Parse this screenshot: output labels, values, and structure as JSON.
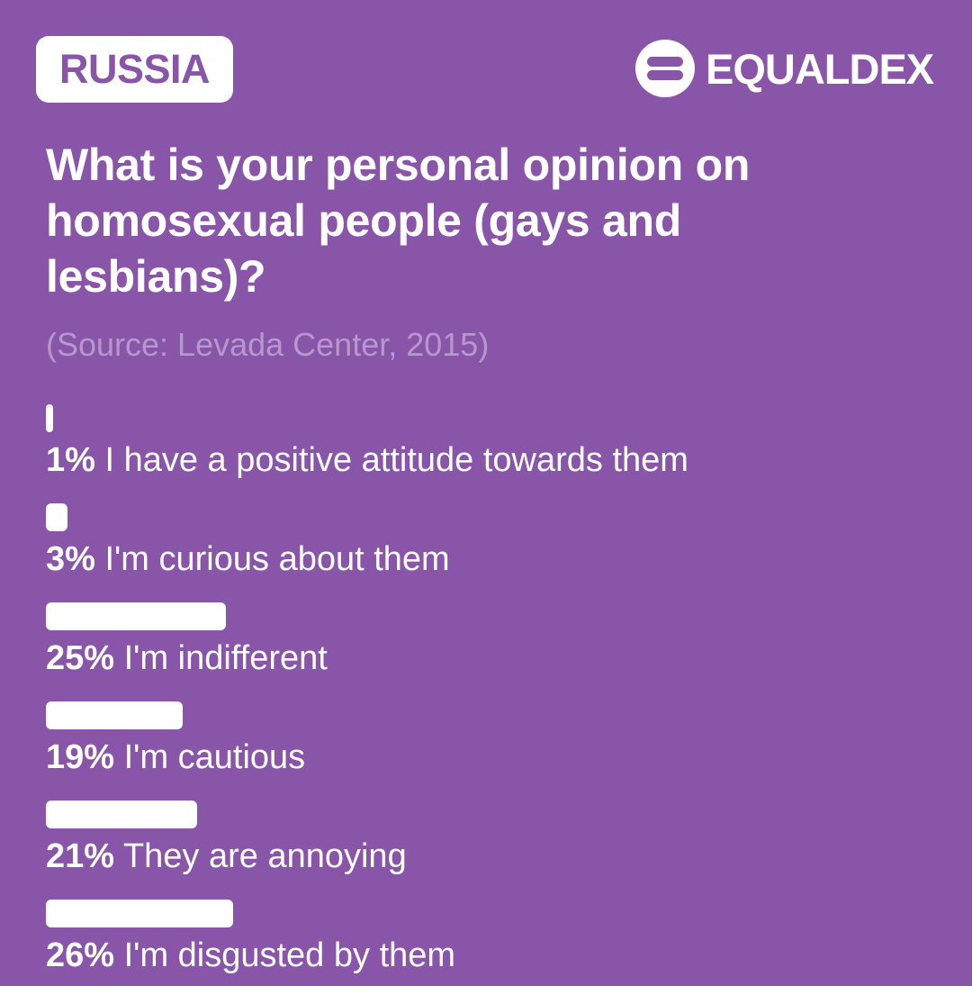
{
  "header": {
    "country": "RUSSIA",
    "brand_name": "EQUALDEX",
    "logo_icon": "equaldex-logo-icon"
  },
  "colors": {
    "background": "#8955a9",
    "bar": "#ffffff",
    "source_text": "#b697ce"
  },
  "question": "What is your personal opinion on homosexual people (gays and lesbians)?",
  "source": "(Source: Levada Center, 2015)",
  "chart_data": {
    "type": "bar",
    "orientation": "horizontal",
    "title": "What is your personal opinion on homosexual people (gays and lesbians)?",
    "subtitle": "(Source: Levada Center, 2015)",
    "categories": [
      "I have a positive attitude towards them",
      "I'm curious about them",
      "I'm indifferent",
      "I'm cautious",
      "They are annoying",
      "I'm disgusted by them"
    ],
    "values": [
      1,
      3,
      25,
      19,
      21,
      26
    ],
    "value_labels": [
      "1%",
      "3%",
      "25%",
      "19%",
      "21%",
      "26%"
    ],
    "unit": "%",
    "xlim": [
      0,
      100
    ],
    "grid": false,
    "legend": "none"
  }
}
